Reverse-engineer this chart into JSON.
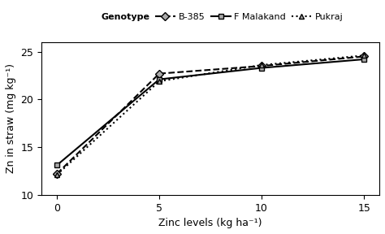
{
  "x": [
    0,
    5,
    10,
    15
  ],
  "series": [
    {
      "name": "B-385",
      "values": [
        12.2,
        22.7,
        23.5,
        24.5
      ],
      "linestyle": "--",
      "marker": "D",
      "color": "#000000",
      "markerface": "#aaaaaa",
      "markersize": 5,
      "linewidth": 1.5
    },
    {
      "name": "F Malakand",
      "values": [
        13.1,
        22.1,
        23.3,
        24.2
      ],
      "linestyle": "-",
      "marker": "s",
      "color": "#000000",
      "markerface": "#aaaaaa",
      "markersize": 5,
      "linewidth": 1.5
    },
    {
      "name": "Pukraj",
      "values": [
        12.1,
        21.9,
        23.6,
        24.6
      ],
      "linestyle": ":",
      "marker": "^",
      "color": "#000000",
      "markerface": "#aaaaaa",
      "markersize": 5,
      "linewidth": 1.5
    }
  ],
  "xlabel": "Zinc levels (kg ha⁻¹)",
  "ylabel": "Zn in straw (mg kg⁻¹)",
  "ylim": [
    10,
    26
  ],
  "yticks": [
    10,
    15,
    20,
    25
  ],
  "xticks": [
    0,
    5,
    10,
    15
  ],
  "legend_label": "Genotype",
  "background_color": "#ffffff",
  "axis_fontsize": 9,
  "tick_fontsize": 9
}
